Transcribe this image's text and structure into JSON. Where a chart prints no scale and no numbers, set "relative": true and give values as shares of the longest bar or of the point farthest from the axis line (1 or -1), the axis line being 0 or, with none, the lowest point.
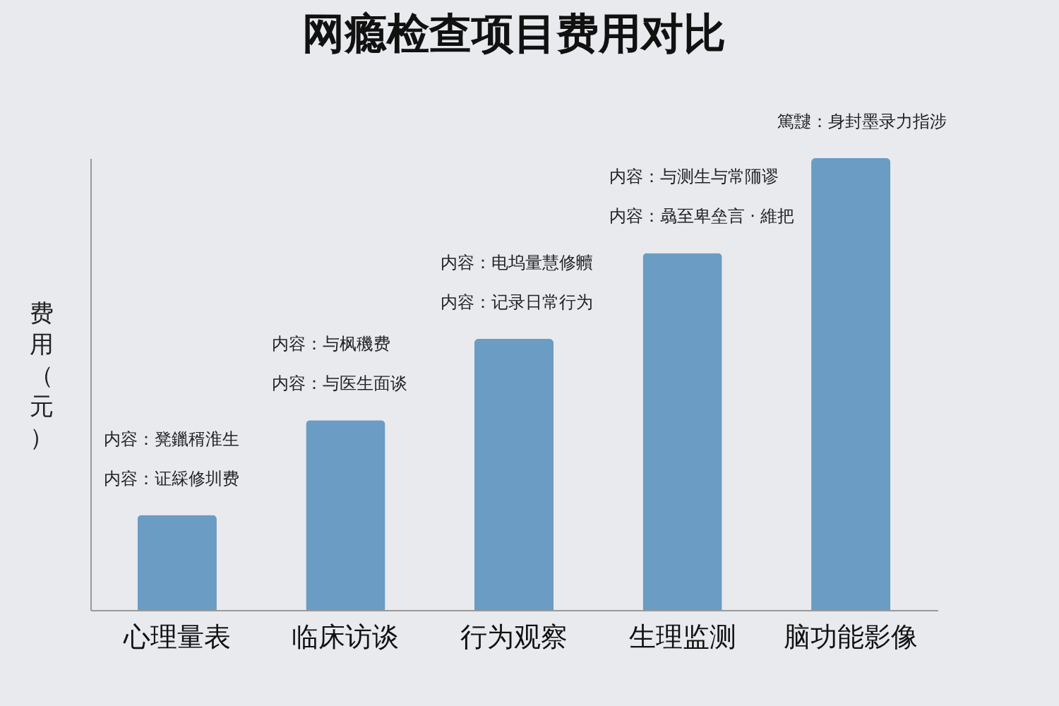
{
  "chart_data": {
    "type": "bar",
    "title": "网瘾检查项目费用对比",
    "ylabel": "费用（元）",
    "relative": true,
    "categories": [
      "心理量表",
      "临床访谈",
      "行为观察",
      "生理监测",
      "脑功能影像"
    ],
    "values": [
      0.21,
      0.42,
      0.6,
      0.79,
      1
    ],
    "color": "#6a9cc4",
    "annotations": [
      "内容：凳鑞稰淮生",
      "内容：证綵修圳费",
      "内容：与枫穖费",
      "内容：与医生面谈",
      "内容：电坞量慧修贕",
      "内容：记录日常行为",
      "内容：与测生与常陑谬",
      "内容：骉至卑垒言 · 維把",
      "篤靆：身封墨录力指涉"
    ]
  }
}
